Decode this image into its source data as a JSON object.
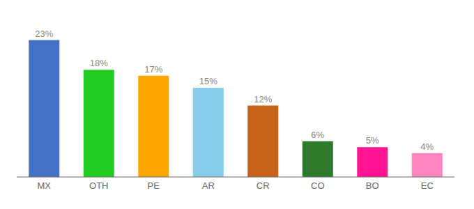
{
  "chart_data": {
    "type": "bar",
    "categories": [
      "MX",
      "OTH",
      "PE",
      "AR",
      "CR",
      "CO",
      "BO",
      "EC"
    ],
    "values": [
      23,
      18,
      17,
      15,
      12,
      6,
      5,
      4
    ],
    "value_labels": [
      "23%",
      "18%",
      "17%",
      "15%",
      "12%",
      "6%",
      "5%",
      "4%"
    ],
    "colors": [
      "#4472C4",
      "#22CC22",
      "#FFA500",
      "#87CEEB",
      "#C8621A",
      "#2D7A2D",
      "#FF1493",
      "#FF85C0"
    ],
    "ylim": [
      0,
      26
    ],
    "data_labels": true,
    "tick_labels": "x",
    "grid": false
  }
}
